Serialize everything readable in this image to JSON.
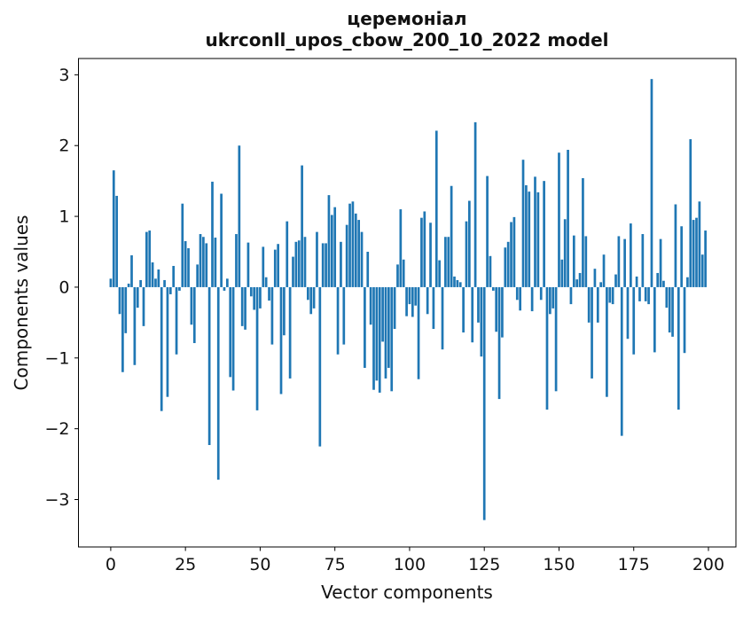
{
  "figure": {
    "title_line1": "церемоніал",
    "title_line2": "ukrconll_upos_cbow_200_10_2022 model",
    "xlabel": "Vector components",
    "ylabel": "Components values"
  },
  "chart_data": {
    "type": "bar",
    "title": "церемоніал",
    "subtitle": "ukrconll_upos_cbow_200_10_2022 model",
    "xlabel": "Vector components",
    "ylabel": "Components values",
    "bar_color": "#1f77b4",
    "grid": false,
    "legend_position": "none",
    "x_start": 0,
    "n_components": 200,
    "xlim": [
      -10.8,
      209.2
    ],
    "ylim": [
      -3.67,
      3.23
    ],
    "xticks": [
      0,
      25,
      50,
      75,
      100,
      125,
      150,
      175,
      200
    ],
    "yticks": [
      -3,
      -2,
      -1,
      0,
      1,
      2,
      3
    ],
    "ytick_labels": [
      "−3",
      "−2",
      "−1",
      "0",
      "1",
      "2",
      "3"
    ],
    "values": [
      0.12,
      1.65,
      1.29,
      -0.38,
      -1.2,
      -0.65,
      0.05,
      0.45,
      -1.1,
      -0.29,
      0.1,
      -0.55,
      0.78,
      0.8,
      0.35,
      0.12,
      0.25,
      -1.75,
      0.1,
      -1.55,
      -0.1,
      0.3,
      -0.95,
      -0.05,
      1.18,
      0.65,
      0.55,
      -0.53,
      -0.79,
      0.32,
      0.75,
      0.71,
      0.62,
      -2.23,
      1.49,
      0.7,
      -2.72,
      1.32,
      -0.05,
      0.12,
      -1.27,
      -1.46,
      0.75,
      2.0,
      -0.55,
      -0.6,
      0.63,
      -0.13,
      -0.32,
      -1.74,
      -0.3,
      0.57,
      0.14,
      -0.19,
      -0.81,
      0.53,
      0.61,
      -1.51,
      -0.68,
      0.93,
      -1.29,
      0.43,
      0.64,
      0.66,
      1.72,
      0.71,
      -0.18,
      -0.38,
      -0.3,
      0.78,
      -2.25,
      0.62,
      0.62,
      1.3,
      1.02,
      1.13,
      -0.95,
      0.64,
      -0.81,
      0.88,
      1.18,
      1.21,
      1.04,
      0.95,
      0.78,
      -1.14,
      0.5,
      -0.53,
      -1.45,
      -1.32,
      -1.49,
      -0.77,
      -1.29,
      -1.14,
      -1.47,
      -0.59,
      0.32,
      1.1,
      0.39,
      -0.41,
      -0.24,
      -0.42,
      -0.26,
      -1.3,
      0.98,
      1.07,
      -0.38,
      0.91,
      -0.59,
      2.21,
      0.38,
      -0.88,
      0.71,
      0.71,
      1.43,
      0.15,
      0.1,
      0.07,
      -0.64,
      0.93,
      1.22,
      -0.78,
      2.33,
      -0.5,
      -0.98,
      -3.29,
      1.57,
      0.44,
      -0.05,
      -0.63,
      -1.58,
      -0.71,
      0.56,
      0.64,
      0.92,
      0.99,
      -0.18,
      -0.33,
      1.8,
      1.44,
      1.35,
      -0.34,
      1.56,
      1.34,
      -0.18,
      1.5,
      -1.73,
      -0.38,
      -0.3,
      -1.47,
      1.9,
      0.39,
      0.96,
      1.94,
      -0.24,
      0.73,
      0.11,
      0.2,
      1.54,
      0.72,
      -0.5,
      -1.29,
      0.26,
      -0.5,
      0.07,
      0.46,
      -1.55,
      -0.22,
      -0.24,
      0.18,
      0.72,
      -2.1,
      0.68,
      -0.73,
      0.9,
      -0.95,
      0.15,
      -0.2,
      0.75,
      -0.2,
      -0.24,
      2.94,
      -0.92,
      0.2,
      0.68,
      0.09,
      -0.29,
      -0.64,
      -0.7,
      1.17,
      -1.73,
      0.86,
      -0.93,
      0.14,
      2.09,
      0.95,
      0.98,
      1.21,
      0.46,
      0.8
    ]
  }
}
